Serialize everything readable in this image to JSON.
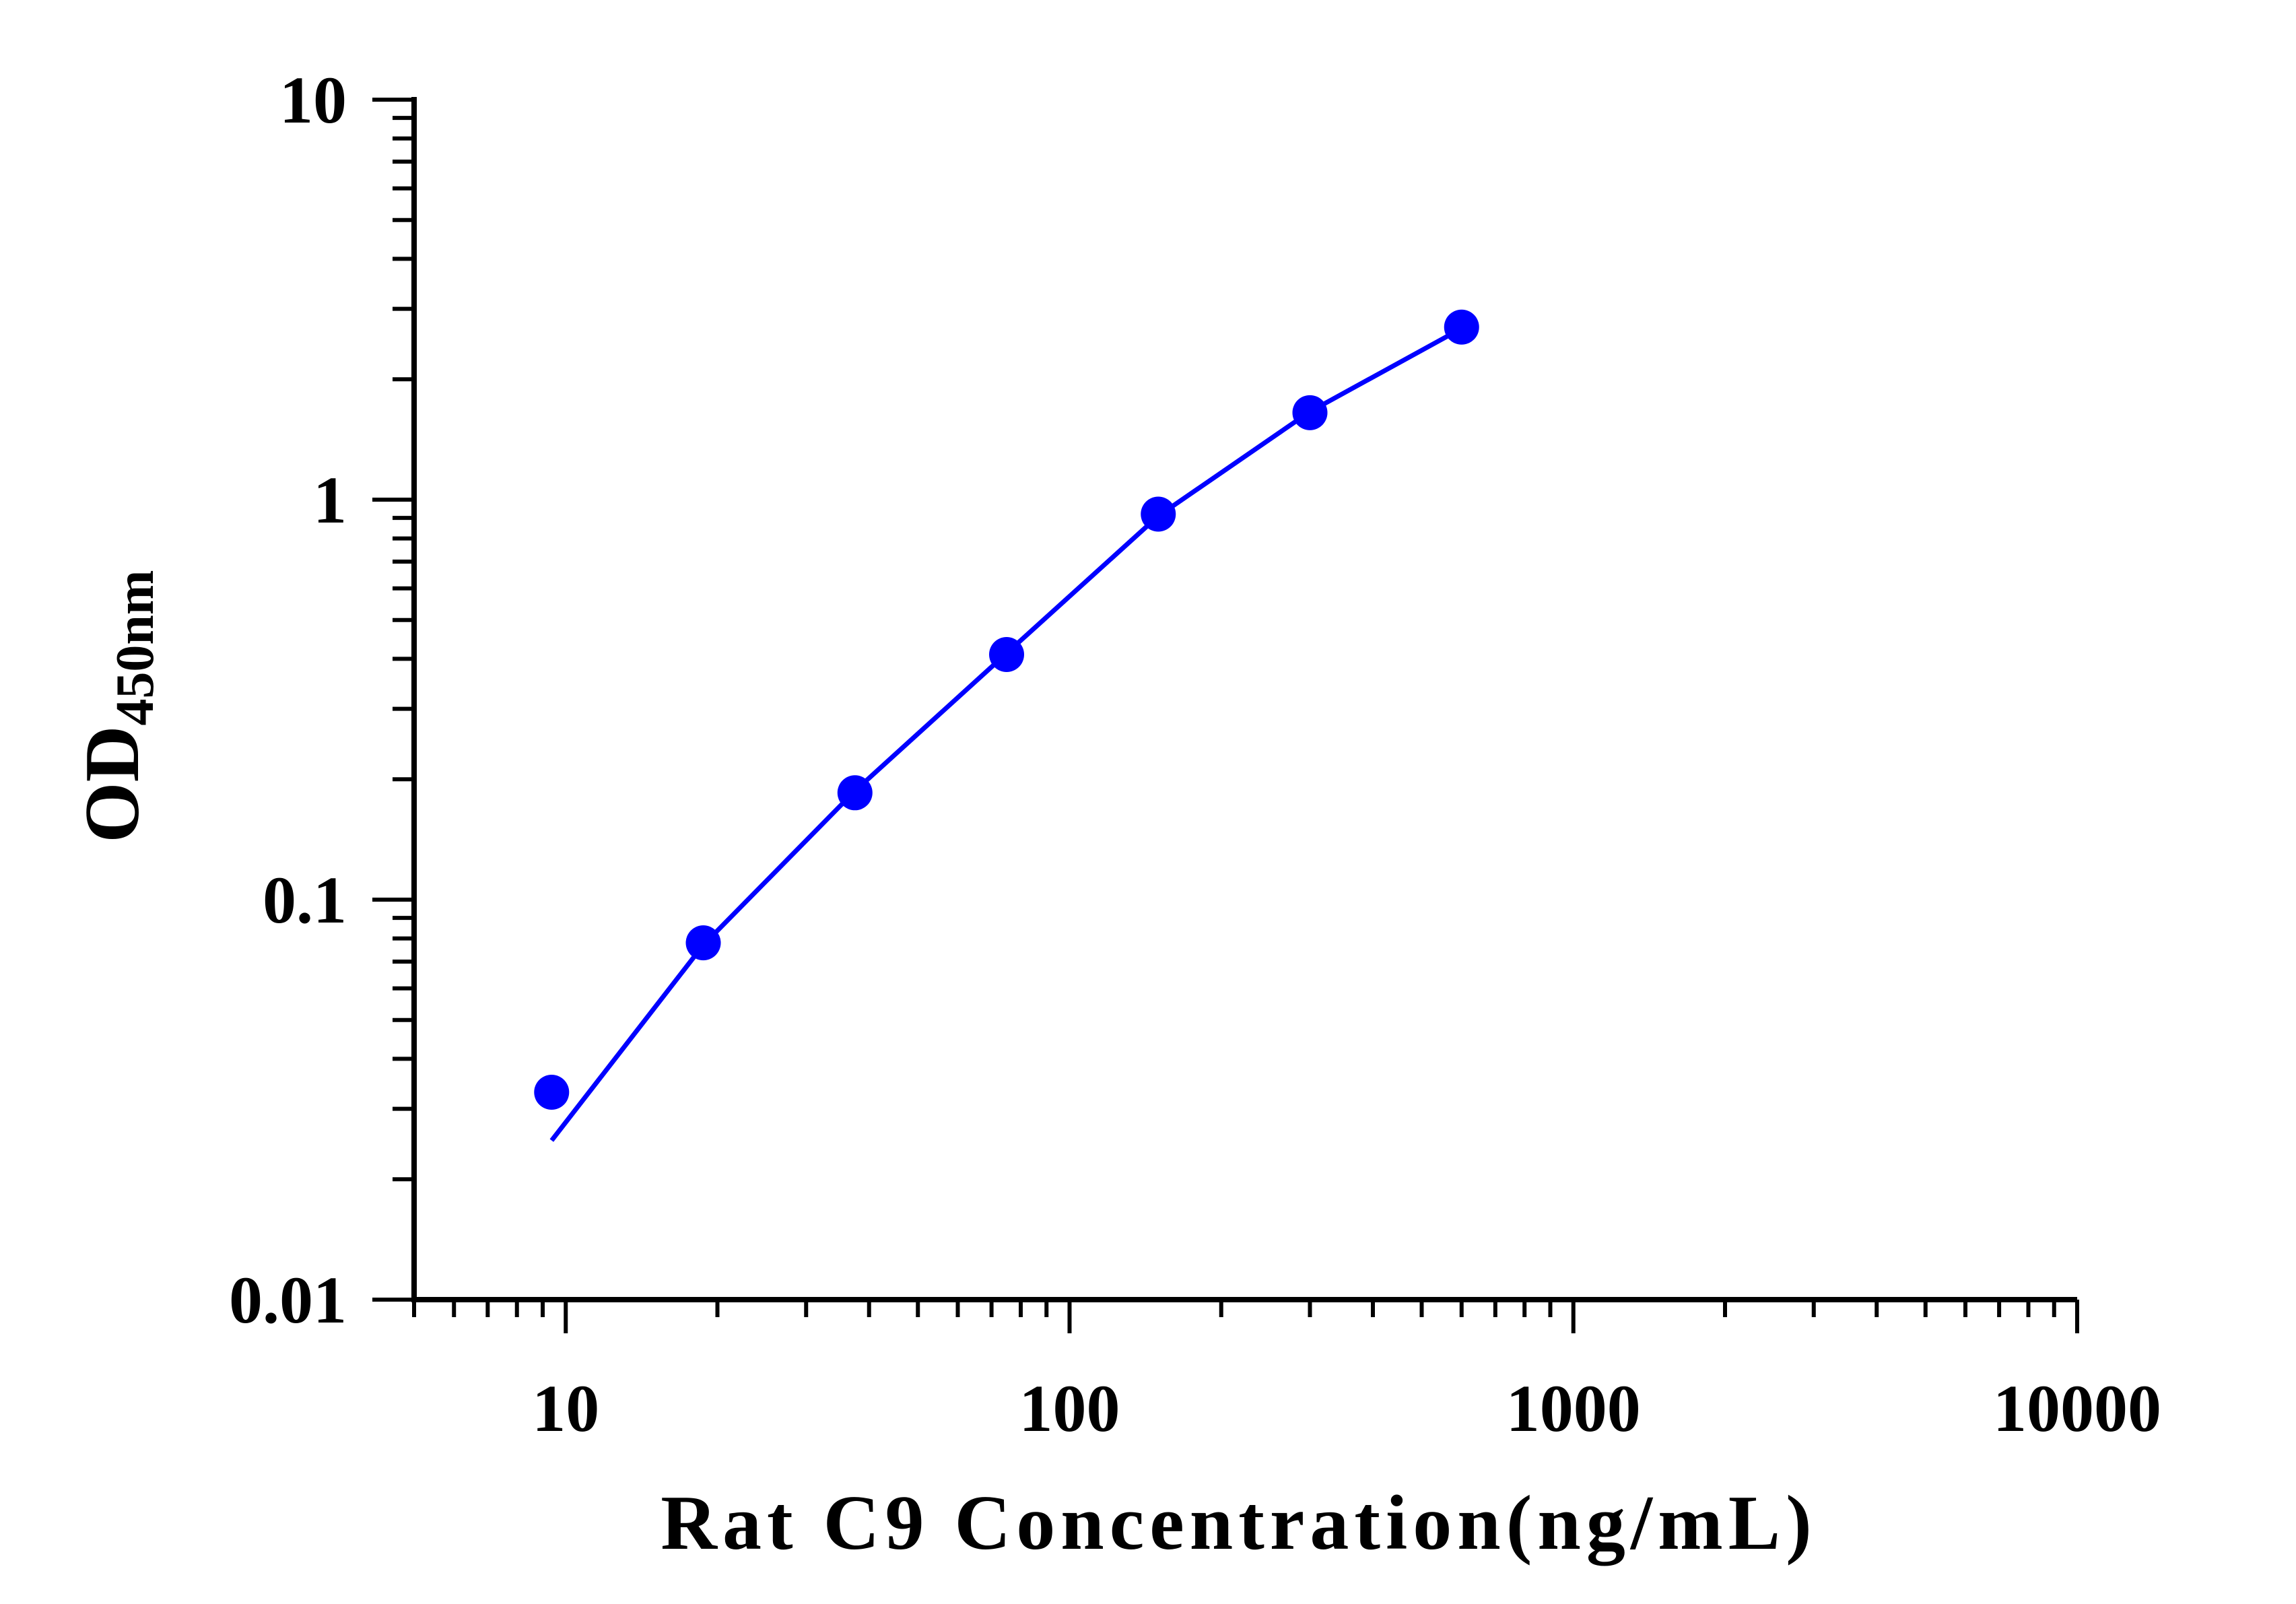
{
  "chart_data": {
    "type": "scatter",
    "xlabel": "Rat C9 Concentration(ng/mL)",
    "ylabel_main": "OD",
    "ylabel_sub": "450nm",
    "xscale": "log",
    "yscale": "log",
    "xlim": [
      5,
      10000
    ],
    "ylim": [
      0.01,
      10
    ],
    "xticks": [
      "10",
      "100",
      "1000",
      "10000"
    ],
    "yticks": [
      "0.01",
      "0.1",
      "1",
      "10"
    ],
    "grid": false,
    "color": "#0000ff",
    "series": [
      {
        "points": [
          {
            "x": 9.375,
            "y": 0.033
          },
          {
            "x": 18.75,
            "y": 0.078
          },
          {
            "x": 37.5,
            "y": 0.185
          },
          {
            "x": 75,
            "y": 0.41
          },
          {
            "x": 150,
            "y": 0.92
          },
          {
            "x": 300,
            "y": 1.65
          },
          {
            "x": 600,
            "y": 2.7
          }
        ],
        "fit": [
          {
            "x": 9.375,
            "y": 0.025
          },
          {
            "x": 18.75,
            "y": 0.077
          },
          {
            "x": 37.5,
            "y": 0.187
          },
          {
            "x": 75,
            "y": 0.413
          },
          {
            "x": 150,
            "y": 0.91
          },
          {
            "x": 300,
            "y": 1.66
          },
          {
            "x": 600,
            "y": 2.68
          }
        ]
      }
    ]
  }
}
